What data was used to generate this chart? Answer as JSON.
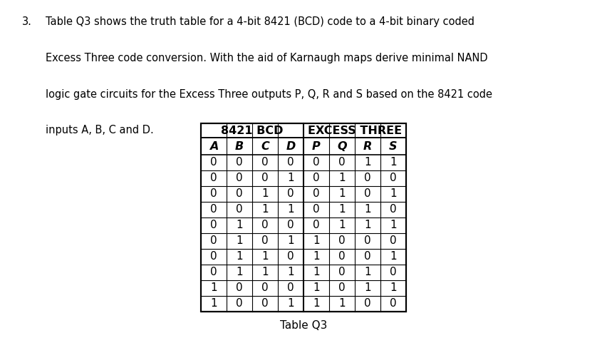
{
  "question_number": "3.",
  "text_lines": [
    "Table Q3 shows the truth table for a 4-bit 8421 (BCD) code to a 4-bit binary coded",
    "Excess Three code conversion. With the aid of Karnaugh maps derive minimal NAND",
    "logic gate circuits for the Excess Three outputs P, Q, R and S based on the 8421 code",
    "inputs A, B, C and D."
  ],
  "table_caption": "Table Q3",
  "group1_header": "8421 BCD",
  "group2_header": "EXCESS THREE",
  "col_headers": [
    "A",
    "B",
    "C",
    "D",
    "P",
    "Q",
    "R",
    "S"
  ],
  "rows": [
    [
      0,
      0,
      0,
      0,
      0,
      0,
      1,
      1
    ],
    [
      0,
      0,
      0,
      1,
      0,
      1,
      0,
      0
    ],
    [
      0,
      0,
      1,
      0,
      0,
      1,
      0,
      1
    ],
    [
      0,
      0,
      1,
      1,
      0,
      1,
      1,
      0
    ],
    [
      0,
      1,
      0,
      0,
      0,
      1,
      1,
      1
    ],
    [
      0,
      1,
      0,
      1,
      1,
      0,
      0,
      0
    ],
    [
      0,
      1,
      1,
      0,
      1,
      0,
      0,
      1
    ],
    [
      0,
      1,
      1,
      1,
      1,
      0,
      1,
      0
    ],
    [
      1,
      0,
      0,
      0,
      1,
      0,
      1,
      1
    ],
    [
      1,
      0,
      0,
      1,
      1,
      1,
      0,
      0
    ]
  ],
  "bg_color": "#ffffff",
  "text_color": "#000000",
  "font_size_body": 10.5,
  "font_size_table_data": 11,
  "font_size_header": 11.5
}
